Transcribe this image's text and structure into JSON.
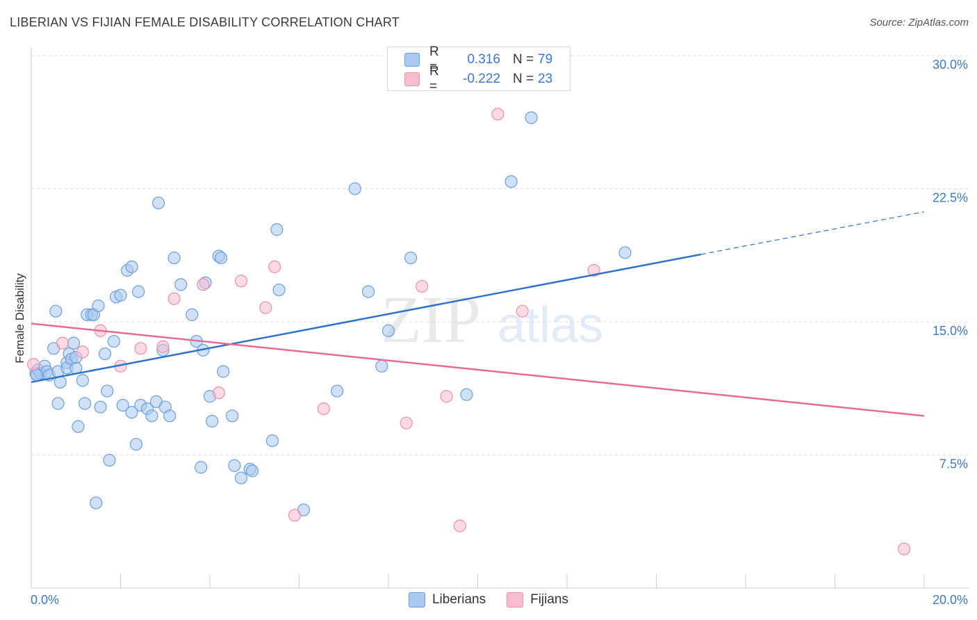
{
  "header": {
    "title": "LIBERIAN VS FIJIAN FEMALE DISABILITY CORRELATION CHART",
    "source": "Source: ZipAtlas.com"
  },
  "watermark": {
    "part1": "ZIP",
    "part2": "atlas"
  },
  "legend": {
    "rows": [
      {
        "r_label": "R =",
        "r_value": "0.316",
        "n_label": "N =",
        "n_value": "79",
        "color": "#a9c9f0"
      },
      {
        "r_label": "R =",
        "r_value": "-0.222",
        "n_label": "N =",
        "n_value": "23",
        "color": "#f7bccd"
      }
    ],
    "bottom": [
      {
        "label": "Liberians",
        "color": "#a9c9f0"
      },
      {
        "label": "Fijians",
        "color": "#f7bccd"
      }
    ]
  },
  "colors": {
    "liberian_fill": "#a9c9f0",
    "liberian_stroke": "#6a9fdc",
    "liberian_line": "#2f73c9",
    "fijian_fill": "#f7bccd",
    "fijian_stroke": "#ea8fae",
    "fijian_line": "#e56a96",
    "tick_label": "#3b78c8",
    "grid": "#dddddd"
  },
  "chart_data": {
    "type": "scatter",
    "title": "LIBERIAN VS FIJIAN FEMALE DISABILITY CORRELATION CHART",
    "ylabel": "Female Disability",
    "xlim": [
      0,
      20
    ],
    "ylim": [
      0,
      30
    ],
    "x_tick_labels": [
      "0.0%",
      "20.0%"
    ],
    "y_ticks": [
      7.5,
      15.0,
      22.5,
      30.0
    ],
    "y_tick_labels": [
      "7.5%",
      "15.0%",
      "22.5%",
      "30.0%"
    ],
    "grid": true,
    "legend_position": "top-center",
    "series": [
      {
        "name": "Liberians",
        "r": 0.316,
        "n": 79,
        "trend": {
          "x": [
            0.0,
            15.0
          ],
          "y": [
            11.6,
            18.8
          ],
          "dashed_extension": {
            "x": [
              15.0,
              20.0
            ],
            "y": [
              18.8,
              21.2
            ]
          }
        },
        "points": [
          [
            0.1,
            12.1
          ],
          [
            0.15,
            12.3
          ],
          [
            0.2,
            12.1
          ],
          [
            0.3,
            12.5
          ],
          [
            0.35,
            12.2
          ],
          [
            0.4,
            12.0
          ],
          [
            0.5,
            13.5
          ],
          [
            0.55,
            15.6
          ],
          [
            0.6,
            12.2
          ],
          [
            0.6,
            10.4
          ],
          [
            0.65,
            11.6
          ],
          [
            0.8,
            12.7
          ],
          [
            0.8,
            12.4
          ],
          [
            0.85,
            13.2
          ],
          [
            0.9,
            12.9
          ],
          [
            0.95,
            13.8
          ],
          [
            1.0,
            12.4
          ],
          [
            1.0,
            13.0
          ],
          [
            1.05,
            9.1
          ],
          [
            1.15,
            11.7
          ],
          [
            1.2,
            10.4
          ],
          [
            1.25,
            15.4
          ],
          [
            1.35,
            15.4
          ],
          [
            1.4,
            15.4
          ],
          [
            1.45,
            4.8
          ],
          [
            1.5,
            15.9
          ],
          [
            1.55,
            10.2
          ],
          [
            1.65,
            13.2
          ],
          [
            1.7,
            11.1
          ],
          [
            1.75,
            7.2
          ],
          [
            1.85,
            13.9
          ],
          [
            1.9,
            16.4
          ],
          [
            2.0,
            16.5
          ],
          [
            2.05,
            10.3
          ],
          [
            2.15,
            17.9
          ],
          [
            2.25,
            18.1
          ],
          [
            2.25,
            9.9
          ],
          [
            2.35,
            8.1
          ],
          [
            2.4,
            16.7
          ],
          [
            2.45,
            10.3
          ],
          [
            2.6,
            10.1
          ],
          [
            2.7,
            9.7
          ],
          [
            2.8,
            10.5
          ],
          [
            2.85,
            21.7
          ],
          [
            2.95,
            13.4
          ],
          [
            3.0,
            10.2
          ],
          [
            3.1,
            9.7
          ],
          [
            3.2,
            18.6
          ],
          [
            3.35,
            17.1
          ],
          [
            3.6,
            15.4
          ],
          [
            3.7,
            13.9
          ],
          [
            3.8,
            6.8
          ],
          [
            3.85,
            13.4
          ],
          [
            3.9,
            17.2
          ],
          [
            4.0,
            10.8
          ],
          [
            4.05,
            9.4
          ],
          [
            4.2,
            18.7
          ],
          [
            4.25,
            18.6
          ],
          [
            4.3,
            12.2
          ],
          [
            4.5,
            9.7
          ],
          [
            4.55,
            6.9
          ],
          [
            4.7,
            6.2
          ],
          [
            4.9,
            6.7
          ],
          [
            4.95,
            6.6
          ],
          [
            5.4,
            8.3
          ],
          [
            5.5,
            20.2
          ],
          [
            5.55,
            16.8
          ],
          [
            6.1,
            4.4
          ],
          [
            6.85,
            11.1
          ],
          [
            7.25,
            22.5
          ],
          [
            7.55,
            16.7
          ],
          [
            7.85,
            12.5
          ],
          [
            8.0,
            14.5
          ],
          [
            8.5,
            18.6
          ],
          [
            9.75,
            10.9
          ],
          [
            10.75,
            22.9
          ],
          [
            11.2,
            26.5
          ],
          [
            13.3,
            18.9
          ],
          [
            0.12,
            12.0
          ]
        ]
      },
      {
        "name": "Fijians",
        "r": -0.222,
        "n": 23,
        "trend": {
          "x": [
            0.0,
            20.0
          ],
          "y": [
            14.9,
            9.7
          ]
        },
        "points": [
          [
            0.05,
            12.6
          ],
          [
            0.7,
            13.8
          ],
          [
            1.15,
            13.3
          ],
          [
            1.55,
            14.5
          ],
          [
            2.0,
            12.5
          ],
          [
            2.45,
            13.5
          ],
          [
            2.95,
            13.6
          ],
          [
            3.2,
            16.3
          ],
          [
            3.85,
            17.1
          ],
          [
            4.2,
            11.0
          ],
          [
            4.7,
            17.3
          ],
          [
            5.25,
            15.8
          ],
          [
            5.45,
            18.1
          ],
          [
            5.9,
            4.1
          ],
          [
            6.55,
            10.1
          ],
          [
            8.4,
            9.3
          ],
          [
            8.75,
            17.0
          ],
          [
            9.3,
            10.8
          ],
          [
            9.6,
            3.5
          ],
          [
            10.45,
            26.7
          ],
          [
            11.0,
            15.6
          ],
          [
            12.6,
            17.9
          ],
          [
            19.55,
            2.2
          ]
        ]
      }
    ]
  }
}
